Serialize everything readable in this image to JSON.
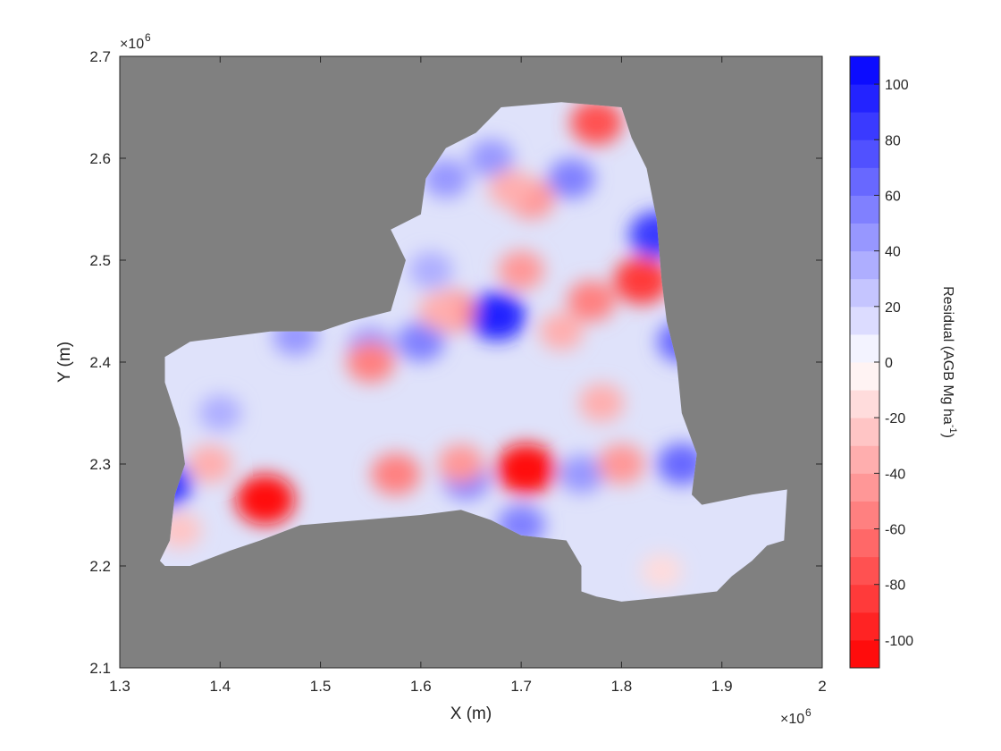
{
  "chart_data": {
    "type": "heatmap",
    "title": "",
    "xlabel": "X (m)",
    "ylabel": "Y (m)",
    "x_scale_exponent": "×10^6",
    "y_scale_exponent": "×10^6",
    "xlim": [
      1.3,
      2.0
    ],
    "ylim": [
      2.1,
      2.7
    ],
    "x_ticks": [
      "1.3",
      "1.4",
      "1.5",
      "1.6",
      "1.7",
      "1.8",
      "1.9",
      "2"
    ],
    "y_ticks": [
      "2.1",
      "2.2",
      "2.3",
      "2.4",
      "2.5",
      "2.6",
      "2.7"
    ],
    "background_color": "#808080",
    "grid": false,
    "colorbar": {
      "label": "Residual (AGB Mg ha⁻¹)",
      "range": [
        -110,
        110
      ],
      "levels": 22,
      "ticks": [
        "100",
        "80",
        "60",
        "40",
        "20",
        "0",
        "-20",
        "-40",
        "-60",
        "-80",
        "-100"
      ],
      "tick_values": [
        100,
        80,
        60,
        40,
        20,
        0,
        -20,
        -40,
        -60,
        -80,
        -100
      ],
      "color_min": "#ff0000",
      "color_mid": "#ffffff",
      "color_max": "#0000ff"
    },
    "region_outline": [
      [
        1.34,
        2.205
      ],
      [
        1.35,
        2.225
      ],
      [
        1.355,
        2.27
      ],
      [
        1.365,
        2.3
      ],
      [
        1.36,
        2.335
      ],
      [
        1.345,
        2.38
      ],
      [
        1.345,
        2.405
      ],
      [
        1.37,
        2.42
      ],
      [
        1.41,
        2.425
      ],
      [
        1.45,
        2.43
      ],
      [
        1.5,
        2.43
      ],
      [
        1.53,
        2.44
      ],
      [
        1.57,
        2.45
      ],
      [
        1.585,
        2.5
      ],
      [
        1.57,
        2.53
      ],
      [
        1.6,
        2.545
      ],
      [
        1.605,
        2.58
      ],
      [
        1.625,
        2.61
      ],
      [
        1.655,
        2.625
      ],
      [
        1.68,
        2.65
      ],
      [
        1.74,
        2.655
      ],
      [
        1.8,
        2.65
      ],
      [
        1.81,
        2.62
      ],
      [
        1.825,
        2.59
      ],
      [
        1.835,
        2.54
      ],
      [
        1.84,
        2.48
      ],
      [
        1.845,
        2.44
      ],
      [
        1.855,
        2.4
      ],
      [
        1.86,
        2.35
      ],
      [
        1.875,
        2.31
      ],
      [
        1.87,
        2.27
      ],
      [
        1.88,
        2.26
      ],
      [
        1.93,
        2.27
      ],
      [
        1.965,
        2.275
      ],
      [
        1.962,
        2.225
      ],
      [
        1.945,
        2.22
      ],
      [
        1.93,
        2.205
      ],
      [
        1.91,
        2.19
      ],
      [
        1.895,
        2.175
      ],
      [
        1.85,
        2.17
      ],
      [
        1.8,
        2.165
      ],
      [
        1.775,
        2.17
      ],
      [
        1.76,
        2.175
      ],
      [
        1.76,
        2.2
      ],
      [
        1.745,
        2.225
      ],
      [
        1.7,
        2.23
      ],
      [
        1.67,
        2.245
      ],
      [
        1.64,
        2.255
      ],
      [
        1.6,
        2.25
      ],
      [
        1.54,
        2.245
      ],
      [
        1.48,
        2.24
      ],
      [
        1.44,
        2.225
      ],
      [
        1.41,
        2.215
      ],
      [
        1.37,
        2.2
      ],
      [
        1.345,
        2.2
      ]
    ],
    "residual_anomalies": [
      {
        "x": 1.676,
        "y": 2.445,
        "value": 95
      },
      {
        "x": 1.835,
        "y": 2.525,
        "value": 85
      },
      {
        "x": 1.345,
        "y": 2.28,
        "value": 85
      },
      {
        "x": 1.55,
        "y": 2.415,
        "value": 45
      },
      {
        "x": 1.475,
        "y": 2.425,
        "value": 40
      },
      {
        "x": 1.6,
        "y": 2.42,
        "value": 50
      },
      {
        "x": 1.86,
        "y": 2.42,
        "value": 60
      },
      {
        "x": 1.86,
        "y": 2.3,
        "value": 60
      },
      {
        "x": 1.76,
        "y": 2.29,
        "value": 40
      },
      {
        "x": 1.7,
        "y": 2.24,
        "value": 55
      },
      {
        "x": 1.645,
        "y": 2.285,
        "value": 50
      },
      {
        "x": 1.625,
        "y": 2.58,
        "value": 45
      },
      {
        "x": 1.67,
        "y": 2.6,
        "value": 40
      },
      {
        "x": 1.75,
        "y": 2.58,
        "value": 50
      },
      {
        "x": 1.61,
        "y": 2.49,
        "value": 35
      },
      {
        "x": 1.4,
        "y": 2.35,
        "value": 30
      },
      {
        "x": 1.445,
        "y": 2.265,
        "value": -105
      },
      {
        "x": 1.705,
        "y": 2.295,
        "value": -110
      },
      {
        "x": 1.82,
        "y": 2.48,
        "value": -90
      },
      {
        "x": 1.775,
        "y": 2.635,
        "value": -75
      },
      {
        "x": 1.63,
        "y": 2.45,
        "value": -60
      },
      {
        "x": 1.71,
        "y": 2.56,
        "value": -50
      },
      {
        "x": 1.7,
        "y": 2.49,
        "value": -45
      },
      {
        "x": 1.69,
        "y": 2.57,
        "value": -40
      },
      {
        "x": 1.55,
        "y": 2.4,
        "value": -55
      },
      {
        "x": 1.575,
        "y": 2.29,
        "value": -60
      },
      {
        "x": 1.64,
        "y": 2.3,
        "value": -45
      },
      {
        "x": 1.77,
        "y": 2.46,
        "value": -55
      },
      {
        "x": 1.8,
        "y": 2.3,
        "value": -50
      },
      {
        "x": 1.62,
        "y": 2.45,
        "value": -40
      },
      {
        "x": 1.39,
        "y": 2.3,
        "value": -40
      },
      {
        "x": 1.36,
        "y": 2.235,
        "value": -30
      },
      {
        "x": 1.84,
        "y": 2.195,
        "value": -20
      },
      {
        "x": 1.78,
        "y": 2.36,
        "value": -40
      },
      {
        "x": 1.74,
        "y": 2.43,
        "value": -35
      }
    ]
  }
}
